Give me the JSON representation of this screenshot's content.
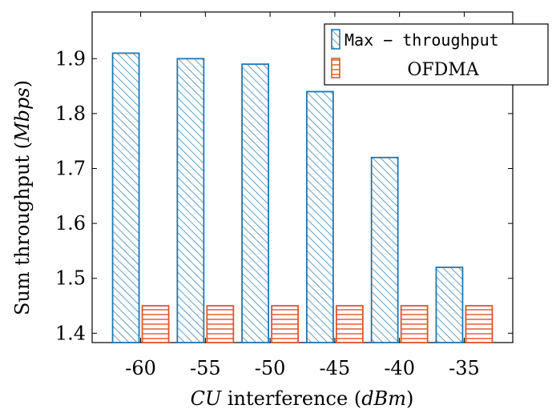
{
  "chart_data": {
    "type": "bar",
    "categories": [
      "-60",
      "-55",
      "-50",
      "-45",
      "-40",
      "-35"
    ],
    "series": [
      {
        "name": "Max − throughput",
        "values": [
          1.91,
          1.9,
          1.89,
          1.84,
          1.72,
          1.52
        ],
        "color": "#1f77b4",
        "pattern": "diagonal-hatch"
      },
      {
        "name": "OFDMA",
        "values": [
          1.45,
          1.45,
          1.45,
          1.45,
          1.45,
          1.45
        ],
        "color": "#e0552a",
        "pattern": "horizontal-lines"
      }
    ],
    "y_ticks": [
      "1.4",
      "1.5",
      "1.6",
      "1.7",
      "1.8",
      "1.9"
    ],
    "y_tick_values": [
      1.4,
      1.5,
      1.6,
      1.7,
      1.8,
      1.9
    ],
    "ylim": [
      1.383,
      1.985
    ],
    "xlabel_parts": [
      "CU",
      " interference (",
      "dBm",
      ")"
    ],
    "ylabel_parts": [
      "Sum throughput (",
      "Mbps",
      ")"
    ],
    "legend_position": "top-right",
    "grid": false
  }
}
